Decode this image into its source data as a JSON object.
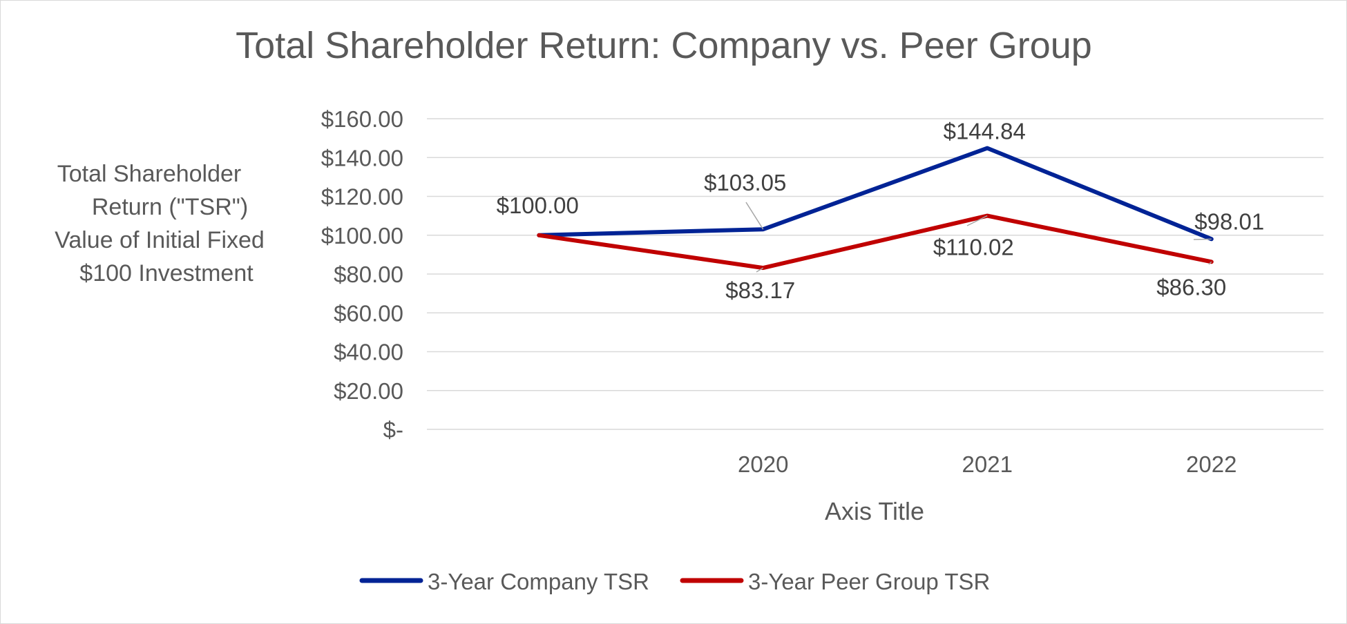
{
  "chart_data": {
    "type": "line",
    "title": "Total Shareholder Return: Company vs. Peer Group",
    "ylabel_lines": [
      "Total Shareholder",
      "Return (\"TSR\")",
      "Value of Initial Fixed",
      "$100 Investment"
    ],
    "xlabel": "Axis Title",
    "categories": [
      "",
      "2020",
      "2021",
      "2022"
    ],
    "ylim": [
      0,
      160
    ],
    "yticks": [
      0,
      20,
      40,
      60,
      80,
      100,
      120,
      140,
      160
    ],
    "ytick_labels": [
      "$-",
      "$20.00",
      "$40.00",
      "$60.00",
      "$80.00",
      "$100.00",
      "$120.00",
      "$140.00",
      "$160.00"
    ],
    "grid": true,
    "legend": "bottom",
    "series": [
      {
        "name": "3-Year Company TSR",
        "color": "#002395",
        "values": [
          100.0,
          103.05,
          144.84,
          98.01
        ],
        "labels": [
          "$100.00",
          "$103.05",
          "$144.84",
          "$98.01"
        ]
      },
      {
        "name": "3-Year Peer Group TSR",
        "color": "#C00000",
        "values": [
          100.0,
          83.17,
          110.02,
          86.3
        ],
        "labels": [
          "",
          "$83.17",
          "$110.02",
          "$86.30"
        ]
      }
    ]
  }
}
